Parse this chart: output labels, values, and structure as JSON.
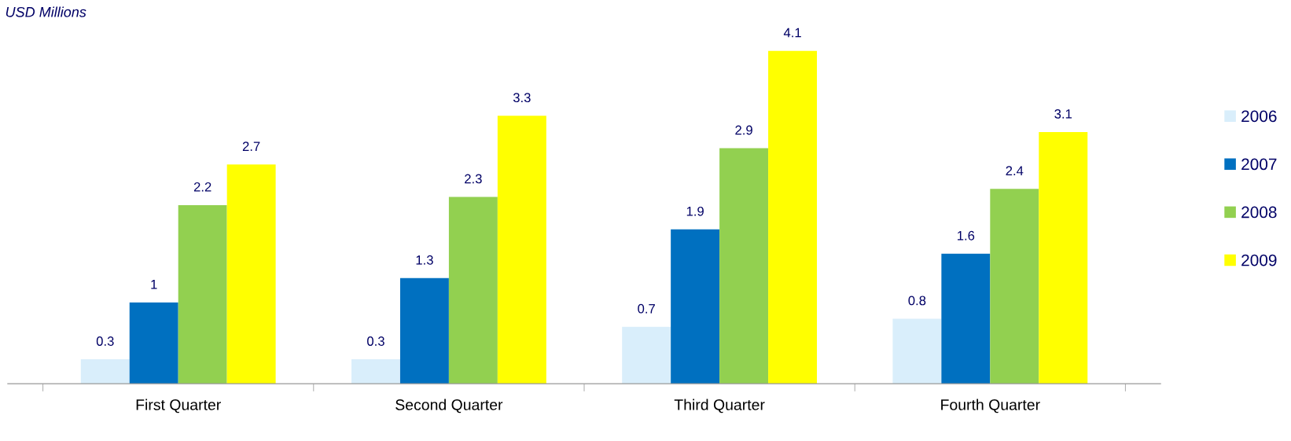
{
  "chart_data": {
    "type": "bar",
    "title": "USD Millions",
    "categories": [
      "First Quarter",
      "Second Quarter",
      "Third Quarter",
      "Fourth Quarter"
    ],
    "series": [
      {
        "name": "2006",
        "color": "#d9eefb",
        "values": [
          0.3,
          0.3,
          0.7,
          0.8
        ]
      },
      {
        "name": "2007",
        "color": "#0070c0",
        "values": [
          1,
          1.3,
          1.9,
          1.6
        ]
      },
      {
        "name": "2008",
        "color": "#92d050",
        "values": [
          2.2,
          2.3,
          2.9,
          2.4
        ]
      },
      {
        "name": "2009",
        "color": "#ffff00",
        "values": [
          2.7,
          3.3,
          4.1,
          3.1
        ]
      }
    ],
    "data_labels": true,
    "legend": "right",
    "grid": false
  }
}
